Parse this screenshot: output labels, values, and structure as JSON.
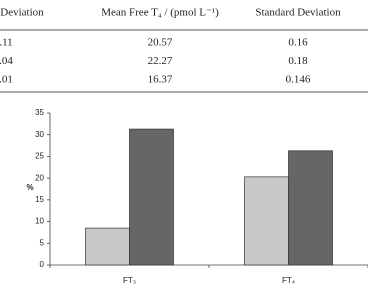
{
  "table": {
    "header": [
      "Deviation",
      "Mean Free T₄ / (pmol L⁻¹)",
      "Standard Deviation"
    ],
    "rows": [
      [
        ".11",
        "20.57",
        "0.16"
      ],
      [
        ".04",
        "22.27",
        "0.18"
      ],
      [
        ".01",
        "16.37",
        "0.146"
      ]
    ]
  },
  "chart_data": {
    "type": "bar",
    "ylabel": "%",
    "categories": [
      "FT₃",
      "FT₄"
    ],
    "series": [
      {
        "color": "#c8c8c8",
        "values": [
          8.5,
          20.3
        ]
      },
      {
        "color": "#666666",
        "values": [
          31.3,
          26.3
        ]
      }
    ],
    "ylim": [
      0,
      35
    ],
    "yticks": [
      0,
      5,
      10,
      15,
      20,
      25,
      30,
      35
    ]
  }
}
